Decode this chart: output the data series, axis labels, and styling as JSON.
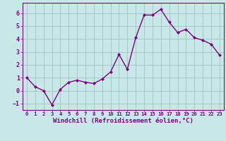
{
  "x": [
    0,
    1,
    2,
    3,
    4,
    5,
    6,
    7,
    8,
    9,
    10,
    11,
    12,
    13,
    14,
    15,
    16,
    17,
    18,
    19,
    20,
    21,
    22,
    23
  ],
  "y": [
    1.0,
    0.3,
    0.0,
    -1.1,
    0.1,
    0.65,
    0.8,
    0.65,
    0.55,
    0.9,
    1.45,
    2.8,
    1.65,
    4.1,
    5.85,
    5.85,
    6.3,
    5.3,
    4.5,
    4.75,
    4.1,
    3.9,
    3.6,
    2.75
  ],
  "line_color": "#800080",
  "marker": "D",
  "marker_size": 2.0,
  "background_color": "#c8e8e8",
  "grid_color": "#9bbaba",
  "xlabel": "Windchill (Refroidissement éolien,°C)",
  "xlabel_color": "#800080",
  "tick_color": "#800080",
  "ylim": [
    -1.5,
    6.8
  ],
  "xlim": [
    -0.5,
    23.5
  ],
  "yticks": [
    -1,
    0,
    1,
    2,
    3,
    4,
    5,
    6
  ],
  "xticks": [
    0,
    1,
    2,
    3,
    4,
    5,
    6,
    7,
    8,
    9,
    10,
    11,
    12,
    13,
    14,
    15,
    16,
    17,
    18,
    19,
    20,
    21,
    22,
    23
  ],
  "xlabel_fontsize": 6.5,
  "xtick_fontsize": 5.2,
  "ytick_fontsize": 6.0,
  "linewidth": 1.0,
  "spine_color": "#800080"
}
